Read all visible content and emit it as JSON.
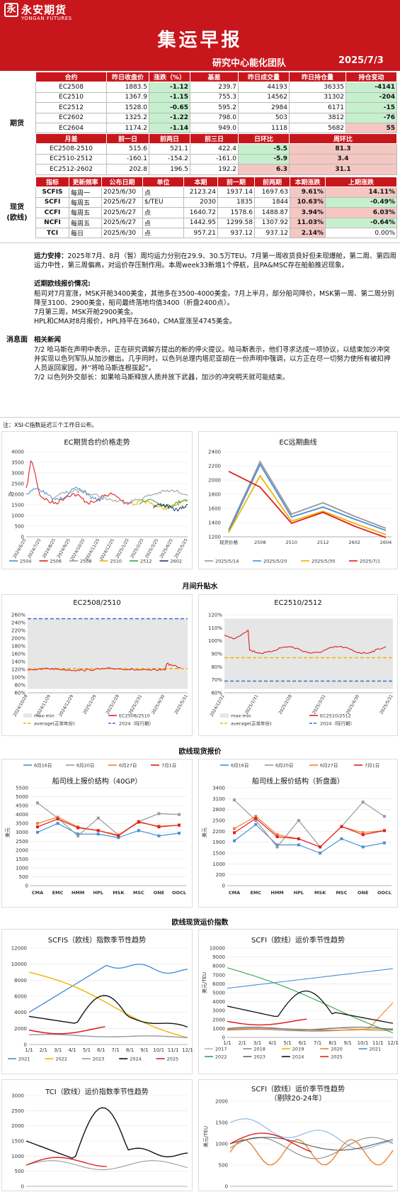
{
  "header": {
    "logo_char": "永",
    "logo_cn": "永安期货",
    "logo_en": "YONGAN FUTURES",
    "title": "集运早报",
    "team": "研究中心能化团队",
    "date": "2025/7/3"
  },
  "futures": {
    "section_label": "期货",
    "headers": [
      "合约",
      "昨日收盘价",
      "涨跌（%）",
      "基差",
      "昨日成交量",
      "昨日持仓量",
      "持仓变动"
    ],
    "rows": [
      [
        "EC2508",
        "1883.5",
        "-1.12",
        "239.7",
        "44193",
        "36335",
        "-4141"
      ],
      [
        "EC2510",
        "1367.9",
        "-1.15",
        "755.3",
        "14562",
        "31302",
        "-204"
      ],
      [
        "EC2512",
        "1528.0",
        "-0.65",
        "595.2",
        "2984",
        "6171",
        "-15"
      ],
      [
        "EC2602",
        "1325.2",
        "-1.22",
        "798.0",
        "503",
        "3812",
        "-76"
      ],
      [
        "EC2604",
        "1174.2",
        "-1.14",
        "949.0",
        "1118",
        "5682",
        "55"
      ]
    ],
    "spread_headers": [
      "月差",
      "前一日",
      "前两日",
      "前三日",
      "日环比",
      "周环比"
    ],
    "spread_rows": [
      [
        "EC2508-2510",
        "515.6",
        "521.1",
        "422.4",
        "-5.5",
        "81.3"
      ],
      [
        "EC2510-2512",
        "-160.1",
        "-154.2",
        "-161.0",
        "-5.9",
        "3.4"
      ],
      [
        "EC2512-2602",
        "202.8",
        "196.5",
        "192.2",
        "6.3",
        "31.1"
      ]
    ]
  },
  "spot": {
    "section_label": "现货\n(欧线)",
    "headers": [
      "指标",
      "更新频率",
      "公布日期",
      "单位",
      "本期",
      "前一期",
      "前两期",
      "本期涨跌",
      "上期涨跌"
    ],
    "rows": [
      [
        "SCFIS",
        "每周一",
        "2025/6/30",
        "点",
        "2123.24",
        "1937.14",
        "1697.63",
        "9.61%",
        "14.11%"
      ],
      [
        "SCFI",
        "每周五",
        "2025/6/27",
        "$/TEU",
        "2030",
        "1835",
        "1844",
        "10.63%",
        "-0.49%"
      ],
      [
        "CCFI",
        "每周五",
        "2025/6/27",
        "点",
        "1640.72",
        "1578.6",
        "1488.87",
        "3.94%",
        "6.03%"
      ],
      [
        "NCFI",
        "每周五",
        "2025/6/27",
        "点",
        "1442.95",
        "1299.58",
        "1307.92",
        "11.03%",
        "-0.64%"
      ],
      [
        "TCI",
        "每日",
        "2025/6/30",
        "点",
        "957.21",
        "937.12",
        "937.12",
        "2.14%",
        "0.00%"
      ]
    ]
  },
  "message": {
    "section_label": "消息面",
    "p1_label": "运力安排：",
    "p1": "2025年7月、8月（暂）周均运力分别在29.9、30.5万TEU。7月第一周收货良好但未现爆舱，第二周、第四周运力中性，第三周偏高，对运价存压制作用。本周week33新增1个停航，且PA&MSC存在船舶推迟现象。",
    "p2_label": "近期欧线报价情况:",
    "p2": "船司对7月宣涨，MSK开舱3400美金，其他多在3500-4000美金。7月上半月，部分船司降价，MSK第一周、第二周分别降至3100、2900美金，船司最终落地均值3400（折盘2400点）。",
    "p3": "7月第三周，MSK开舱2900美金。",
    "p4": "HPL和CMA对8月报价，HPL持平在3640，CMA宣涨至4745美金。",
    "p5_label": "相关新闻",
    "p5": "7/2 哈马斯在声明中表示，正在研究调解方提出的新的停火提议。哈马斯表示，他们寻求达成一项协议，以结束加沙冲突并实现以色列军队从加沙撤出。几乎同时，以色列总理内塔尼亚胡在一份声明中强调，以方正在尽一切努力使所有被扣押人员返回家园，并“将哈马斯连根拔起”。",
    "p6": "7/2 以色列外交部长：如果哈马斯释放人质并放下武器，加沙的冲突明天就可能结束。"
  },
  "note": "注：XSI-C指数延迟三个工作日公布。",
  "sections": {
    "month_spread": "月间升贴水",
    "spot_quotes": "欧线现货报价",
    "spot_index": "欧线现货运价指数"
  },
  "chart_data": [
    {
      "type": "line",
      "title": "EC期货合约价格走势",
      "ylabel": "点",
      "yticks": [
        "0",
        "500",
        "1000",
        "1500",
        "2000",
        "2500",
        "3000",
        "3500",
        "4000"
      ],
      "ylim": [
        0,
        4000
      ],
      "xticks": [
        "2024/6/25",
        "2024/7/25",
        "2024/8/25",
        "2024/9/25",
        "2024/10/25",
        "2024/11/25",
        "2024/12/25",
        "2025/1/25",
        "2025/2/25",
        "2025/3/25",
        "2025/4/25",
        "2025/5/25"
      ],
      "series": [
        {
          "name": "2504",
          "color": "#4a90d9"
        },
        {
          "name": "2506",
          "color": "#e02020"
        },
        {
          "name": "2508",
          "color": "#999999"
        },
        {
          "name": "2510",
          "color": "#f0b400"
        },
        {
          "name": "2512",
          "color": "#3aa050"
        },
        {
          "name": "2602",
          "color": "#1f3864"
        }
      ]
    },
    {
      "type": "line",
      "title": "EC远期曲线",
      "categories": [
        "现货价格",
        "2508",
        "2510",
        "2512",
        "2602",
        "2604"
      ],
      "yticks": [
        "1200",
        "1400",
        "1600",
        "1800",
        "2000",
        "2200",
        "2400"
      ],
      "ylim": [
        1200,
        2400
      ],
      "series": [
        {
          "name": "2025/5/14",
          "color": "#999999",
          "values": [
            1300,
            2260,
            1520,
            1680,
            1490,
            1320
          ]
        },
        {
          "name": "2025/5/20",
          "color": "#4a90d9",
          "values": [
            1270,
            2220,
            1480,
            1620,
            1450,
            1290
          ]
        },
        {
          "name": "2025/5/30",
          "color": "#f0b400",
          "values": [
            1260,
            2060,
            1420,
            1560,
            1390,
            1230
          ]
        },
        {
          "name": "2025/7/1",
          "color": "#e02020",
          "values": [
            2123,
            1900,
            1390,
            1545,
            1350,
            1190
          ]
        }
      ]
    },
    {
      "type": "line",
      "title": "EC2508/2510",
      "yticks": [
        "60%",
        "80%",
        "100%",
        "120%",
        "140%",
        "160%",
        "180%",
        "200%",
        "220%",
        "240%",
        "260%"
      ],
      "xticks": [
        "2024/10/29",
        "2024/11/29",
        "2024/12/29",
        "2025/1/29",
        "2025/2/28",
        "2025/3/31",
        "2025/4/30",
        "2025/5/31"
      ],
      "legend": [
        "max-min",
        "EC2508/2510",
        "average(正常年份)",
        "2024（旺行期）"
      ]
    },
    {
      "type": "line",
      "title": "EC2510/2512",
      "yticks": [
        "60%",
        "70%",
        "80%",
        "90%",
        "100%",
        "110%",
        "120%"
      ],
      "xticks": [
        "2024/12/31",
        "2025/1/31",
        "2025/2/28",
        "2025/3/31",
        "2025/4/30",
        "2025/5/31"
      ],
      "legend": [
        "max-min",
        "EC2510/2512",
        "average(正常年份)",
        "2024（旺行期）"
      ]
    },
    {
      "type": "line",
      "title": "船司线上报价结构（40GP）",
      "ylabel": "美元",
      "categories": [
        "CMA",
        "EMC",
        "HMM",
        "HPL",
        "MSK",
        "MSC",
        "ONE",
        "OOCL"
      ],
      "yticks": [
        "0",
        "500",
        "1000",
        "1500",
        "2000",
        "2500",
        "3000",
        "3500",
        "4000",
        "4500",
        "5000",
        "5500"
      ],
      "ylim": [
        0,
        5500
      ],
      "series": [
        {
          "name": "6月16日",
          "color": "#4a90d9",
          "values": [
            3000,
            3500,
            2900,
            2900,
            2700,
            3100,
            2800,
            2950
          ]
        },
        {
          "name": "6月20日",
          "color": "#999999",
          "values": [
            4650,
            3800,
            2800,
            3800,
            2850,
            3600,
            4050,
            4000
          ]
        },
        {
          "name": "6月27日",
          "color": "#f08030",
          "values": [
            3500,
            3850,
            3300,
            3100,
            2850,
            3550,
            3350,
            3400
          ]
        },
        {
          "name": "7月1日",
          "color": "#e02020",
          "values": [
            3300,
            3750,
            3250,
            3100,
            2800,
            3600,
            3300,
            3400
          ]
        }
      ]
    },
    {
      "type": "line",
      "title": "船司线上报价结构（折盘面）",
      "ylabel": "美元",
      "categories": [
        "CMA",
        "EMC",
        "HMM",
        "HPL",
        "MSK",
        "MSC",
        "ONE",
        "OOCL"
      ],
      "yticks": [
        "0",
        "200",
        "1000",
        "1500",
        "1900",
        "2200",
        "2500",
        "2800",
        "3100",
        "3400"
      ],
      "series": [
        {
          "name": "6月16日",
          "color": "#4a90d9",
          "values": [
            2100,
            2500,
            2000,
            2000,
            1800,
            2150,
            1950,
            2050
          ]
        },
        {
          "name": "6月20日",
          "color": "#999999",
          "values": [
            3100,
            2600,
            1950,
            2600,
            1950,
            2450,
            3050,
            2700
          ]
        },
        {
          "name": "6月27日",
          "color": "#f08030",
          "values": [
            2400,
            2700,
            2250,
            2150,
            1950,
            2450,
            2300,
            2350
          ]
        },
        {
          "name": "7月1日",
          "color": "#e02020",
          "values": [
            2300,
            2650,
            2200,
            2150,
            1950,
            2450,
            2250,
            2350
          ]
        }
      ]
    },
    {
      "type": "line",
      "title": "SCFIS（欧线）指数季节性趋势",
      "yticks": [
        "0",
        "2000",
        "4000",
        "6000",
        "8000",
        "10000",
        "12000"
      ],
      "xticks": [
        "1/1",
        "2/1",
        "3/1",
        "4/1",
        "5/1",
        "6/1",
        "7/1",
        "8/1",
        "9/1",
        "10/1",
        "11/1",
        "12/1"
      ],
      "series": [
        {
          "name": "2021",
          "color": "#4a90d9"
        },
        {
          "name": "2022",
          "color": "#f0b400"
        },
        {
          "name": "2023",
          "color": "#999999"
        },
        {
          "name": "2024",
          "color": "#111111"
        },
        {
          "name": "2025",
          "color": "#e02020"
        }
      ]
    },
    {
      "type": "line",
      "title": "SCFI（欧线）运价季节性趋势",
      "ylabel": "美元/TEU",
      "yticks": [
        "0",
        "1000",
        "2000",
        "3000",
        "4000",
        "5000",
        "6000",
        "7000",
        "8000",
        "9000",
        "10000"
      ],
      "xticks": [
        "1/1",
        "2/1",
        "3/1",
        "4/1",
        "5/1",
        "6/1",
        "7/1",
        "8/1",
        "9/1",
        "10/1",
        "11/1",
        "12/1"
      ],
      "series": [
        {
          "name": "2017",
          "color": "#bbbbbb"
        },
        {
          "name": "2018",
          "color": "#888888"
        },
        {
          "name": "2019",
          "color": "#f0b400"
        },
        {
          "name": "2020",
          "color": "#f08030"
        },
        {
          "name": "2021",
          "color": "#4a90d9"
        },
        {
          "name": "2022",
          "color": "#3aa050"
        },
        {
          "name": "2023",
          "color": "#666666"
        },
        {
          "name": "2024",
          "color": "#111111"
        },
        {
          "name": "2025",
          "color": "#e02020"
        }
      ]
    },
    {
      "type": "line",
      "title": "TCI（欧线）运价指数季节性趋势",
      "yticks": [
        "0",
        "500",
        "1000",
        "1500",
        "2000",
        "2500",
        "3000"
      ]
    },
    {
      "type": "line",
      "title": "SCFI（欧线）运价季节性趋势",
      "subtitle": "（剔除20-24年）",
      "ylabel": "美元/TEU",
      "yticks": [
        "0",
        "500",
        "1000",
        "1500",
        "2000"
      ]
    }
  ]
}
